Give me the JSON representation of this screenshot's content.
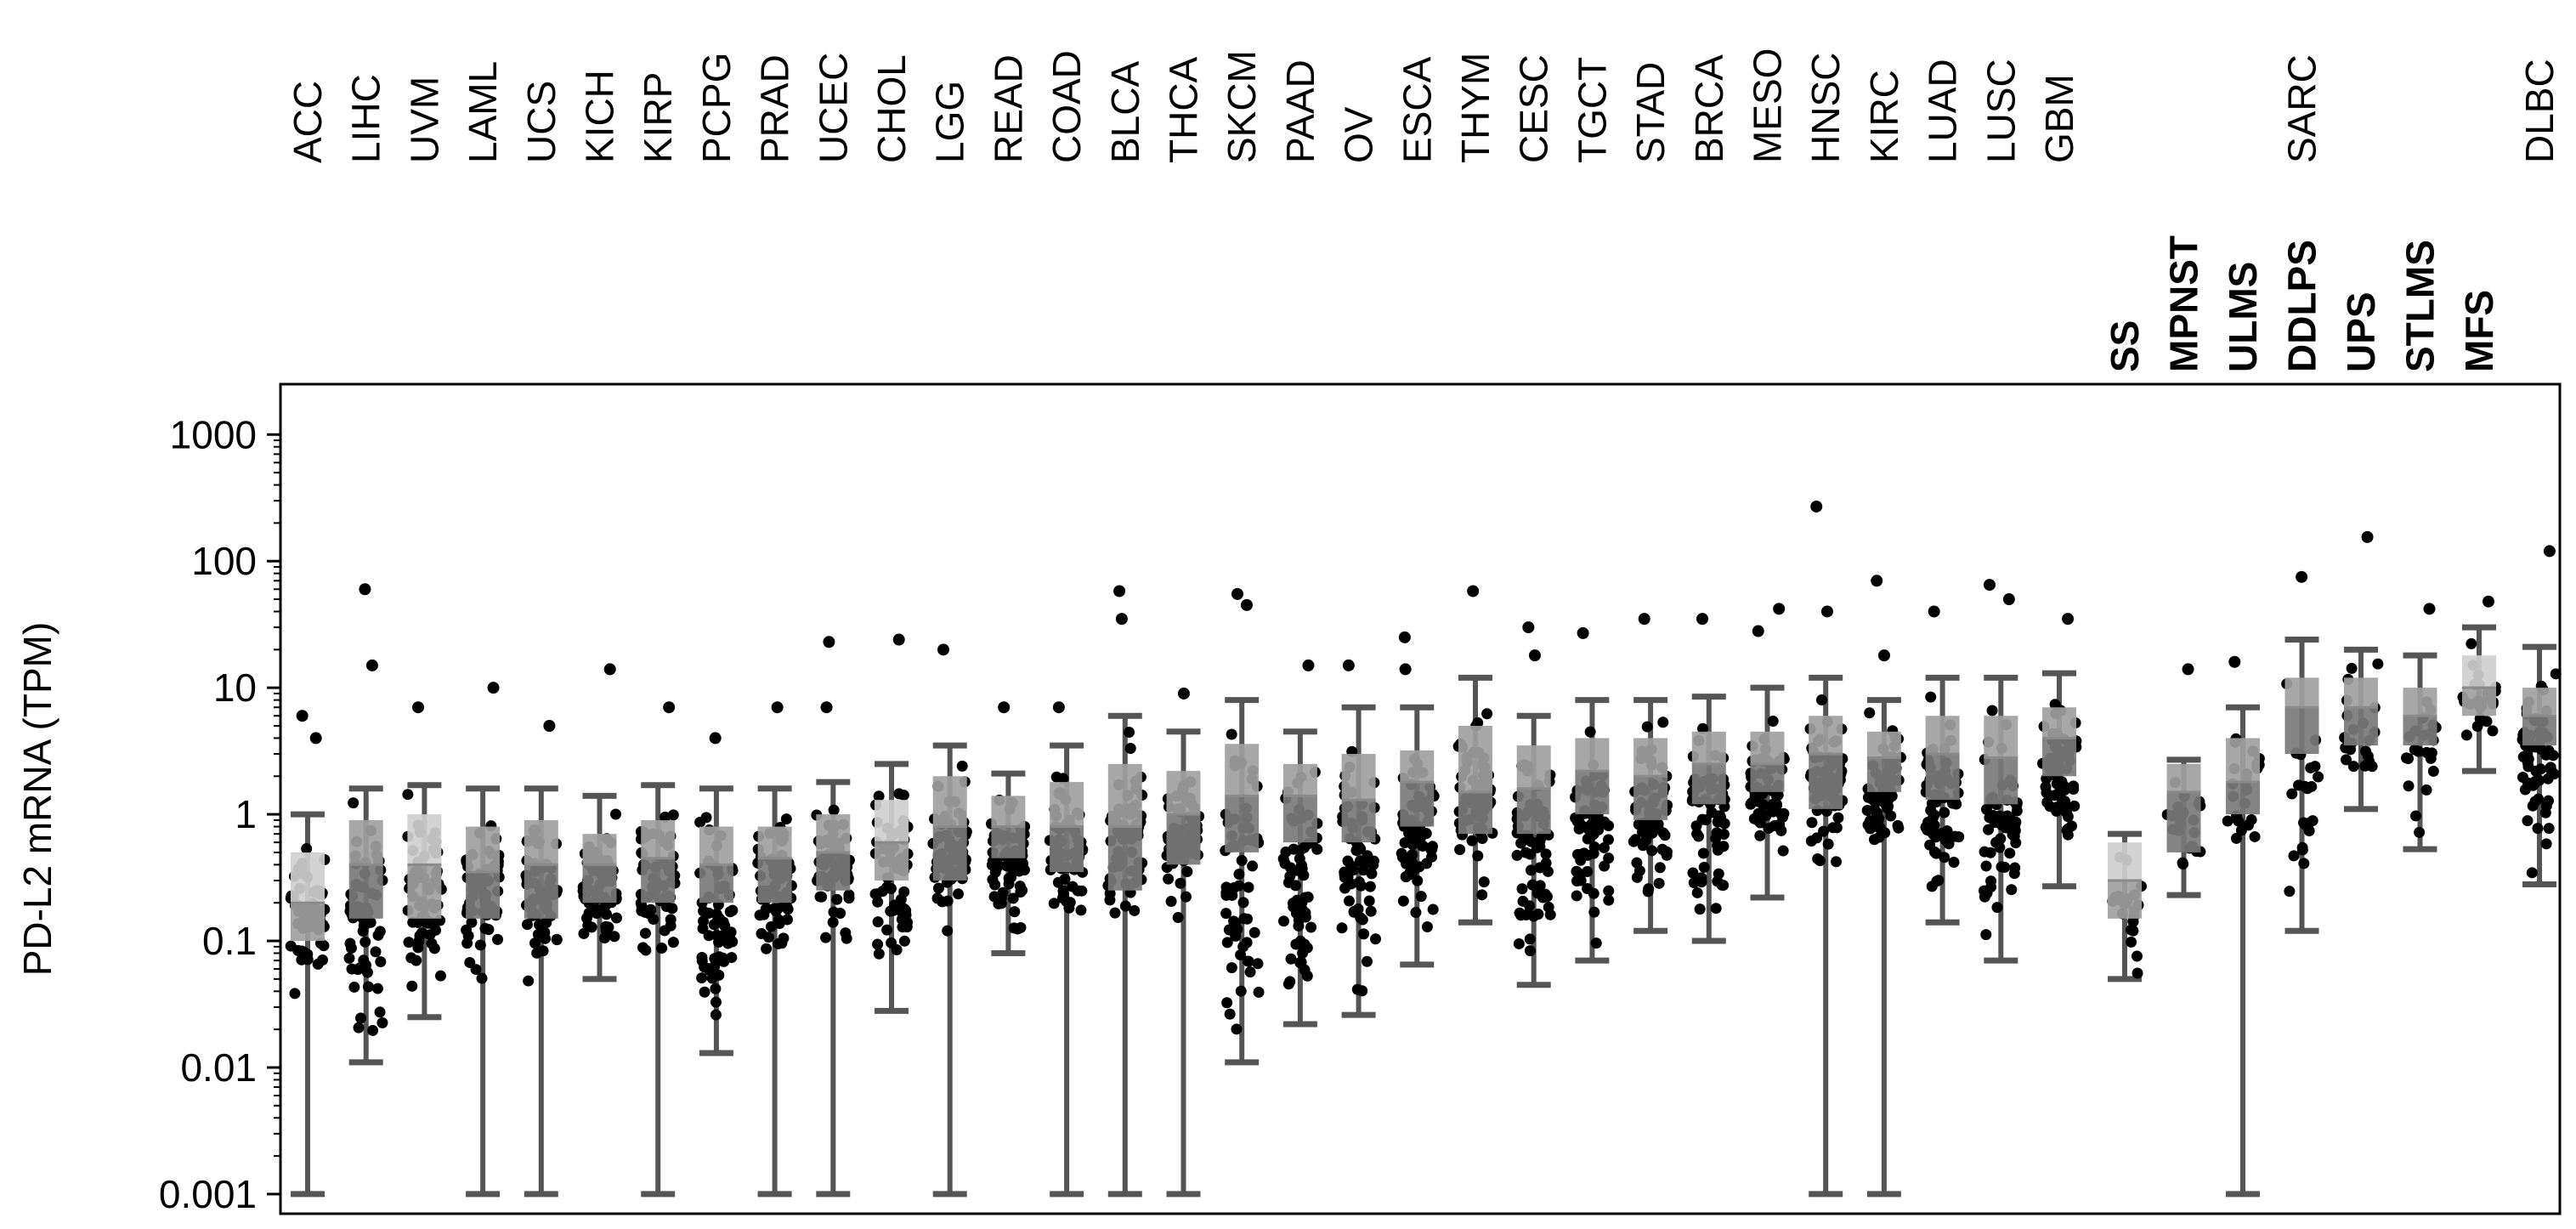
{
  "chart_data": {
    "type": "box",
    "ylabel": "PD-L2 mRNA (TPM)",
    "yscale": "log",
    "ylim": [
      0.0007,
      2500
    ],
    "yticks": [
      "1000",
      "100",
      "10",
      "1",
      "0.1",
      "0.01",
      "0.001"
    ],
    "ytick_values": [
      1000,
      100,
      10,
      1,
      0.1,
      0.01,
      0.001
    ],
    "grid": false,
    "legend": "none",
    "colors": {
      "points": "#000000",
      "whisker": "#555555",
      "box_dark": "#7a7a7a",
      "box_mid": "#a0a0a0",
      "box_light": "#cfcfcf"
    },
    "categories": [
      {
        "label": "ACC",
        "min": 0.001,
        "q1": 0.1,
        "median": 0.2,
        "q3": 0.5,
        "max": 1.0,
        "outliers": [
          6,
          4
        ]
      },
      {
        "label": "LIHC",
        "min": 0.011,
        "q1": 0.15,
        "median": 0.4,
        "q3": 0.9,
        "max": 1.6,
        "outliers": [
          60,
          15
        ]
      },
      {
        "label": "UVM",
        "min": 0.025,
        "q1": 0.15,
        "median": 0.4,
        "q3": 1.0,
        "max": 1.7,
        "outliers": [
          7
        ]
      },
      {
        "label": "LAML",
        "min": 0.001,
        "q1": 0.15,
        "median": 0.35,
        "q3": 0.8,
        "max": 1.6,
        "outliers": [
          10
        ]
      },
      {
        "label": "UCS",
        "min": 0.001,
        "q1": 0.15,
        "median": 0.4,
        "q3": 0.9,
        "max": 1.6,
        "outliers": [
          5
        ]
      },
      {
        "label": "KICH",
        "min": 0.05,
        "q1": 0.2,
        "median": 0.4,
        "q3": 0.7,
        "max": 1.4,
        "outliers": [
          14
        ]
      },
      {
        "label": "KIRP",
        "min": 0.001,
        "q1": 0.2,
        "median": 0.45,
        "q3": 0.9,
        "max": 1.7,
        "outliers": [
          7
        ]
      },
      {
        "label": "PCPG",
        "min": 0.013,
        "q1": 0.2,
        "median": 0.4,
        "q3": 0.8,
        "max": 1.6,
        "outliers": [
          4
        ]
      },
      {
        "label": "PRAD",
        "min": 0.001,
        "q1": 0.2,
        "median": 0.45,
        "q3": 0.8,
        "max": 1.6,
        "outliers": [
          7
        ]
      },
      {
        "label": "UCEC",
        "min": 0.001,
        "q1": 0.25,
        "median": 0.5,
        "q3": 1.0,
        "max": 1.8,
        "outliers": [
          23,
          7
        ]
      },
      {
        "label": "CHOL",
        "min": 0.028,
        "q1": 0.3,
        "median": 0.6,
        "q3": 1.3,
        "max": 2.5,
        "outliers": [
          24
        ]
      },
      {
        "label": "LGG",
        "min": 0.001,
        "q1": 0.3,
        "median": 0.8,
        "q3": 2.0,
        "max": 3.5,
        "outliers": [
          20
        ]
      },
      {
        "label": "READ",
        "min": 0.08,
        "q1": 0.45,
        "median": 0.8,
        "q3": 1.4,
        "max": 2.1,
        "outliers": [
          7
        ]
      },
      {
        "label": "COAD",
        "min": 0.001,
        "q1": 0.35,
        "median": 0.8,
        "q3": 1.8,
        "max": 3.5,
        "outliers": [
          7
        ]
      },
      {
        "label": "BLCA",
        "min": 0.001,
        "q1": 0.25,
        "median": 0.8,
        "q3": 2.5,
        "max": 6,
        "outliers": [
          58,
          35
        ]
      },
      {
        "label": "THCA",
        "min": 0.001,
        "q1": 0.4,
        "median": 1.0,
        "q3": 2.2,
        "max": 4.5,
        "outliers": [
          9
        ]
      },
      {
        "label": "SKCM",
        "min": 0.011,
        "q1": 0.5,
        "median": 1.4,
        "q3": 3.6,
        "max": 8,
        "outliers": [
          55,
          45
        ]
      },
      {
        "label": "PAAD",
        "min": 0.022,
        "q1": 0.6,
        "median": 1.4,
        "q3": 2.5,
        "max": 4.5,
        "outliers": [
          15
        ]
      },
      {
        "label": "OV",
        "min": 0.026,
        "q1": 0.6,
        "median": 1.3,
        "q3": 3.0,
        "max": 7,
        "outliers": [
          15
        ]
      },
      {
        "label": "ESCA",
        "min": 0.065,
        "q1": 0.8,
        "median": 1.8,
        "q3": 3.2,
        "max": 7,
        "outliers": [
          25,
          14
        ]
      },
      {
        "label": "THYM",
        "min": 0.14,
        "q1": 0.7,
        "median": 1.5,
        "q3": 5.0,
        "max": 12,
        "outliers": [
          58
        ]
      },
      {
        "label": "CESC",
        "min": 0.045,
        "q1": 0.7,
        "median": 1.6,
        "q3": 3.5,
        "max": 6,
        "outliers": [
          30,
          18
        ]
      },
      {
        "label": "TGCT",
        "min": 0.07,
        "q1": 1.0,
        "median": 2.2,
        "q3": 4.0,
        "max": 8,
        "outliers": [
          27
        ]
      },
      {
        "label": "STAD",
        "min": 0.12,
        "q1": 0.9,
        "median": 2.0,
        "q3": 4.0,
        "max": 8,
        "outliers": [
          35
        ]
      },
      {
        "label": "BRCA",
        "min": 0.1,
        "q1": 1.2,
        "median": 2.5,
        "q3": 4.5,
        "max": 8.5,
        "outliers": [
          35
        ]
      },
      {
        "label": "MESO",
        "min": 0.22,
        "q1": 1.5,
        "median": 2.5,
        "q3": 4.5,
        "max": 10,
        "outliers": [
          42,
          28
        ]
      },
      {
        "label": "HNSC",
        "min": 0.001,
        "q1": 1.1,
        "median": 3.0,
        "q3": 6.0,
        "max": 12,
        "outliers": [
          270,
          40
        ]
      },
      {
        "label": "KIRC",
        "min": 0.001,
        "q1": 1.5,
        "median": 2.8,
        "q3": 4.5,
        "max": 8,
        "outliers": [
          70,
          18
        ]
      },
      {
        "label": "LUAD",
        "min": 0.14,
        "q1": 1.3,
        "median": 3.0,
        "q3": 6.0,
        "max": 12,
        "outliers": [
          40
        ]
      },
      {
        "label": "LUSC",
        "min": 0.07,
        "q1": 1.2,
        "median": 2.8,
        "q3": 6.0,
        "max": 12,
        "outliers": [
          65,
          50
        ]
      },
      {
        "label": "GBM",
        "min": 0.27,
        "q1": 2.0,
        "median": 4.0,
        "q3": 7.0,
        "max": 13,
        "outliers": [
          35
        ]
      },
      {
        "label": "SS",
        "group": "SARC",
        "min": 0.05,
        "q1": 0.15,
        "median": 0.3,
        "q3": 0.6,
        "max": 0.7,
        "outliers": []
      },
      {
        "label": "MPNST",
        "group": "SARC",
        "min": 0.23,
        "q1": 0.5,
        "median": 1.5,
        "q3": 2.5,
        "max": 2.7,
        "outliers": [
          14
        ]
      },
      {
        "label": "ULMS",
        "group": "SARC",
        "min": 0.001,
        "q1": 1.0,
        "median": 1.8,
        "q3": 4.0,
        "max": 7,
        "outliers": [
          16
        ]
      },
      {
        "label": "DDLPS",
        "group": "SARC",
        "min": 0.12,
        "q1": 3.0,
        "median": 7.0,
        "q3": 12,
        "max": 24,
        "outliers": [
          75
        ]
      },
      {
        "label": "UPS",
        "group": "SARC",
        "min": 1.1,
        "q1": 3.5,
        "median": 7.0,
        "q3": 12,
        "max": 20,
        "outliers": [
          155
        ]
      },
      {
        "label": "STLMS",
        "group": "SARC",
        "min": 0.53,
        "q1": 3.5,
        "median": 6.0,
        "q3": 10,
        "max": 18,
        "outliers": [
          42
        ]
      },
      {
        "label": "MFS",
        "group": "SARC",
        "min": 2.2,
        "q1": 6.0,
        "median": 10,
        "q3": 18,
        "max": 30,
        "outliers": [
          48
        ]
      },
      {
        "label": "DLBC",
        "min": 0.28,
        "q1": 3.5,
        "median": 6.0,
        "q3": 10,
        "max": 21,
        "outliers": [
          120
        ]
      }
    ],
    "group_labels": [
      {
        "label": "SARC"
      }
    ]
  }
}
